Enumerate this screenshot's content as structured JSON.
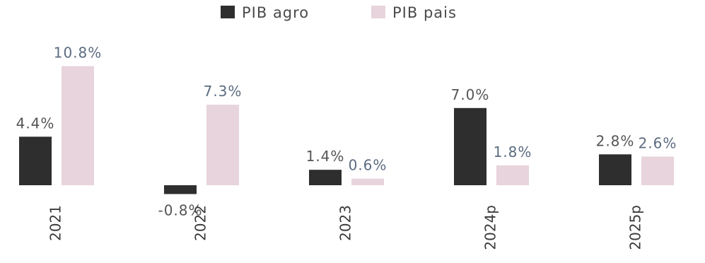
{
  "chart_data": {
    "type": "bar",
    "categories": [
      "2021",
      "2022",
      "2023",
      "2024p",
      "2025p"
    ],
    "series": [
      {
        "name": "PIB agro",
        "values": [
          4.4,
          -0.8,
          1.4,
          7.0,
          2.8
        ],
        "labels": [
          "4.4%",
          "-0.8%",
          "1.4%",
          "7.0%",
          "2.8%"
        ],
        "color": "#2e2e2e",
        "label_color": "#555555"
      },
      {
        "name": "PIB pais",
        "values": [
          10.8,
          7.3,
          0.6,
          1.8,
          2.6
        ],
        "labels": [
          "10.8%",
          "7.3%",
          "0.6%",
          "1.8%",
          "2.6%"
        ],
        "color": "#e8d4dc",
        "label_color": "#5c6b80"
      }
    ],
    "title": "",
    "xlabel": "",
    "ylabel": "",
    "legend_position": "top-center",
    "grid": false
  }
}
